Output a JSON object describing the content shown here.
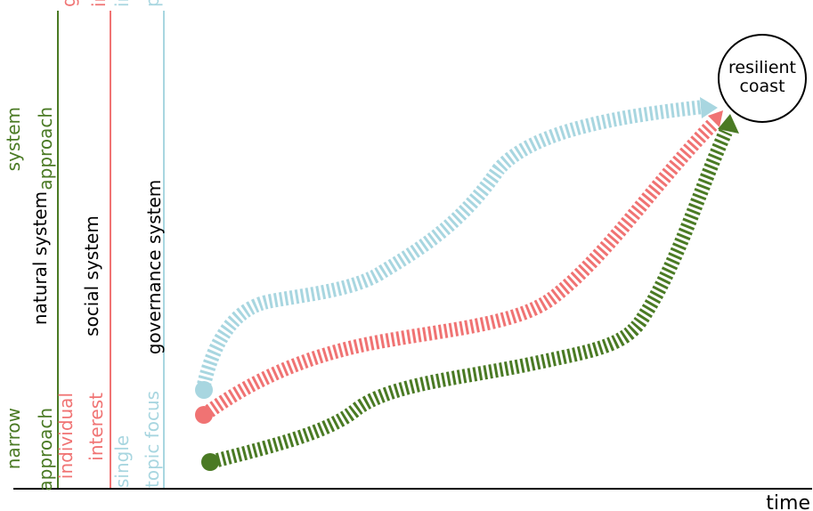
{
  "colors": {
    "natural": "#4a7a24",
    "social": "#f07373",
    "governance": "#a8d6e0",
    "axis": "#000000",
    "text": "#000000"
  },
  "columns": {
    "natural": {
      "top_line1": "system",
      "top_line2": "approach",
      "title": "natural system",
      "bottom_line1": "narrow",
      "bottom_line2": "approach"
    },
    "social": {
      "top_line1": "group",
      "top_line2": "interest",
      "title": "social system",
      "bottom_line1": "individual",
      "bottom_line2": "interest"
    },
    "governance": {
      "top_line1": "integrated",
      "top_line2": "policies",
      "title": "governance system",
      "bottom_line1": "single",
      "bottom_line2": "topic focus"
    }
  },
  "goal": {
    "line1": "resilient",
    "line2": "coast"
  },
  "axis": {
    "x_label": "time"
  },
  "icons": {
    "start_marker": "filled-circle",
    "end_marker": "arrowhead"
  }
}
